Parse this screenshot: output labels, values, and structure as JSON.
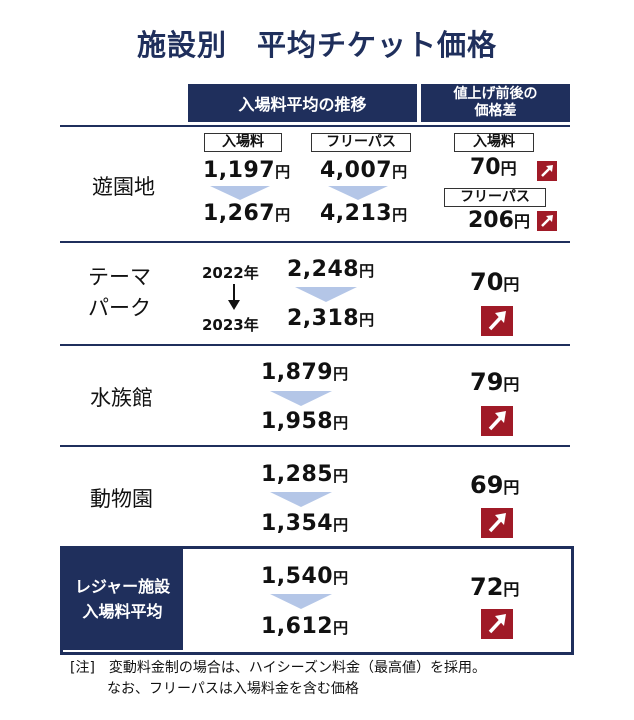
{
  "title": "施設別　平均チケット価格",
  "headers": {
    "trend": "入場料平均の推移",
    "diff_line1": "値上げ前後の",
    "diff_line2": "価格差"
  },
  "tags": {
    "admission": "入場料",
    "free_pass": "フリーパス"
  },
  "unit": "円",
  "years": {
    "before": "2022年",
    "after": "2023年"
  },
  "rows": [
    {
      "label": "遊園地",
      "adm_before": "1,197",
      "adm_after": "1,267",
      "pass_before": "4,007",
      "pass_after": "4,213",
      "adm_diff": "70",
      "pass_diff": "206"
    },
    {
      "label_line1": "テーマ",
      "label_line2": "パーク",
      "before": "2,248",
      "after": "2,318",
      "diff": "70"
    },
    {
      "label": "水族館",
      "before": "1,879",
      "after": "1,958",
      "diff": "79"
    },
    {
      "label": "動物園",
      "before": "1,285",
      "after": "1,354",
      "diff": "69"
    },
    {
      "label_line1": "レジャー施設",
      "label_line2": "入場料平均",
      "before": "1,540",
      "after": "1,612",
      "diff": "72"
    }
  ],
  "notes": {
    "line1": "[注]　変動料金制の場合は、ハイシーズン料金（最高値）を採用。",
    "line2": "なお、フリーパスは入場料金を含む価格"
  },
  "colors": {
    "navy": "#1f2f5c",
    "arrow_red": "#a01a27",
    "chevron": "#b4c6e7"
  },
  "chart_data": {
    "type": "table",
    "title": "施設別　平均チケット価格",
    "columns": [
      "入場料平均の推移",
      "値上げ前後の価格差"
    ],
    "periods": [
      "2022年",
      "2023年"
    ],
    "unit": "円",
    "rows": [
      {
        "category": "遊園地 入場料",
        "values": [
          1197,
          1267
        ],
        "diff": 70
      },
      {
        "category": "遊園地 フリーパス",
        "values": [
          4007,
          4213
        ],
        "diff": 206
      },
      {
        "category": "テーマパーク",
        "values": [
          2248,
          2318
        ],
        "diff": 70
      },
      {
        "category": "水族館",
        "values": [
          1879,
          1958
        ],
        "diff": 79
      },
      {
        "category": "動物園",
        "values": [
          1285,
          1354
        ],
        "diff": 69
      },
      {
        "category": "レジャー施設入場料平均",
        "values": [
          1540,
          1612
        ],
        "diff": 72
      }
    ]
  }
}
